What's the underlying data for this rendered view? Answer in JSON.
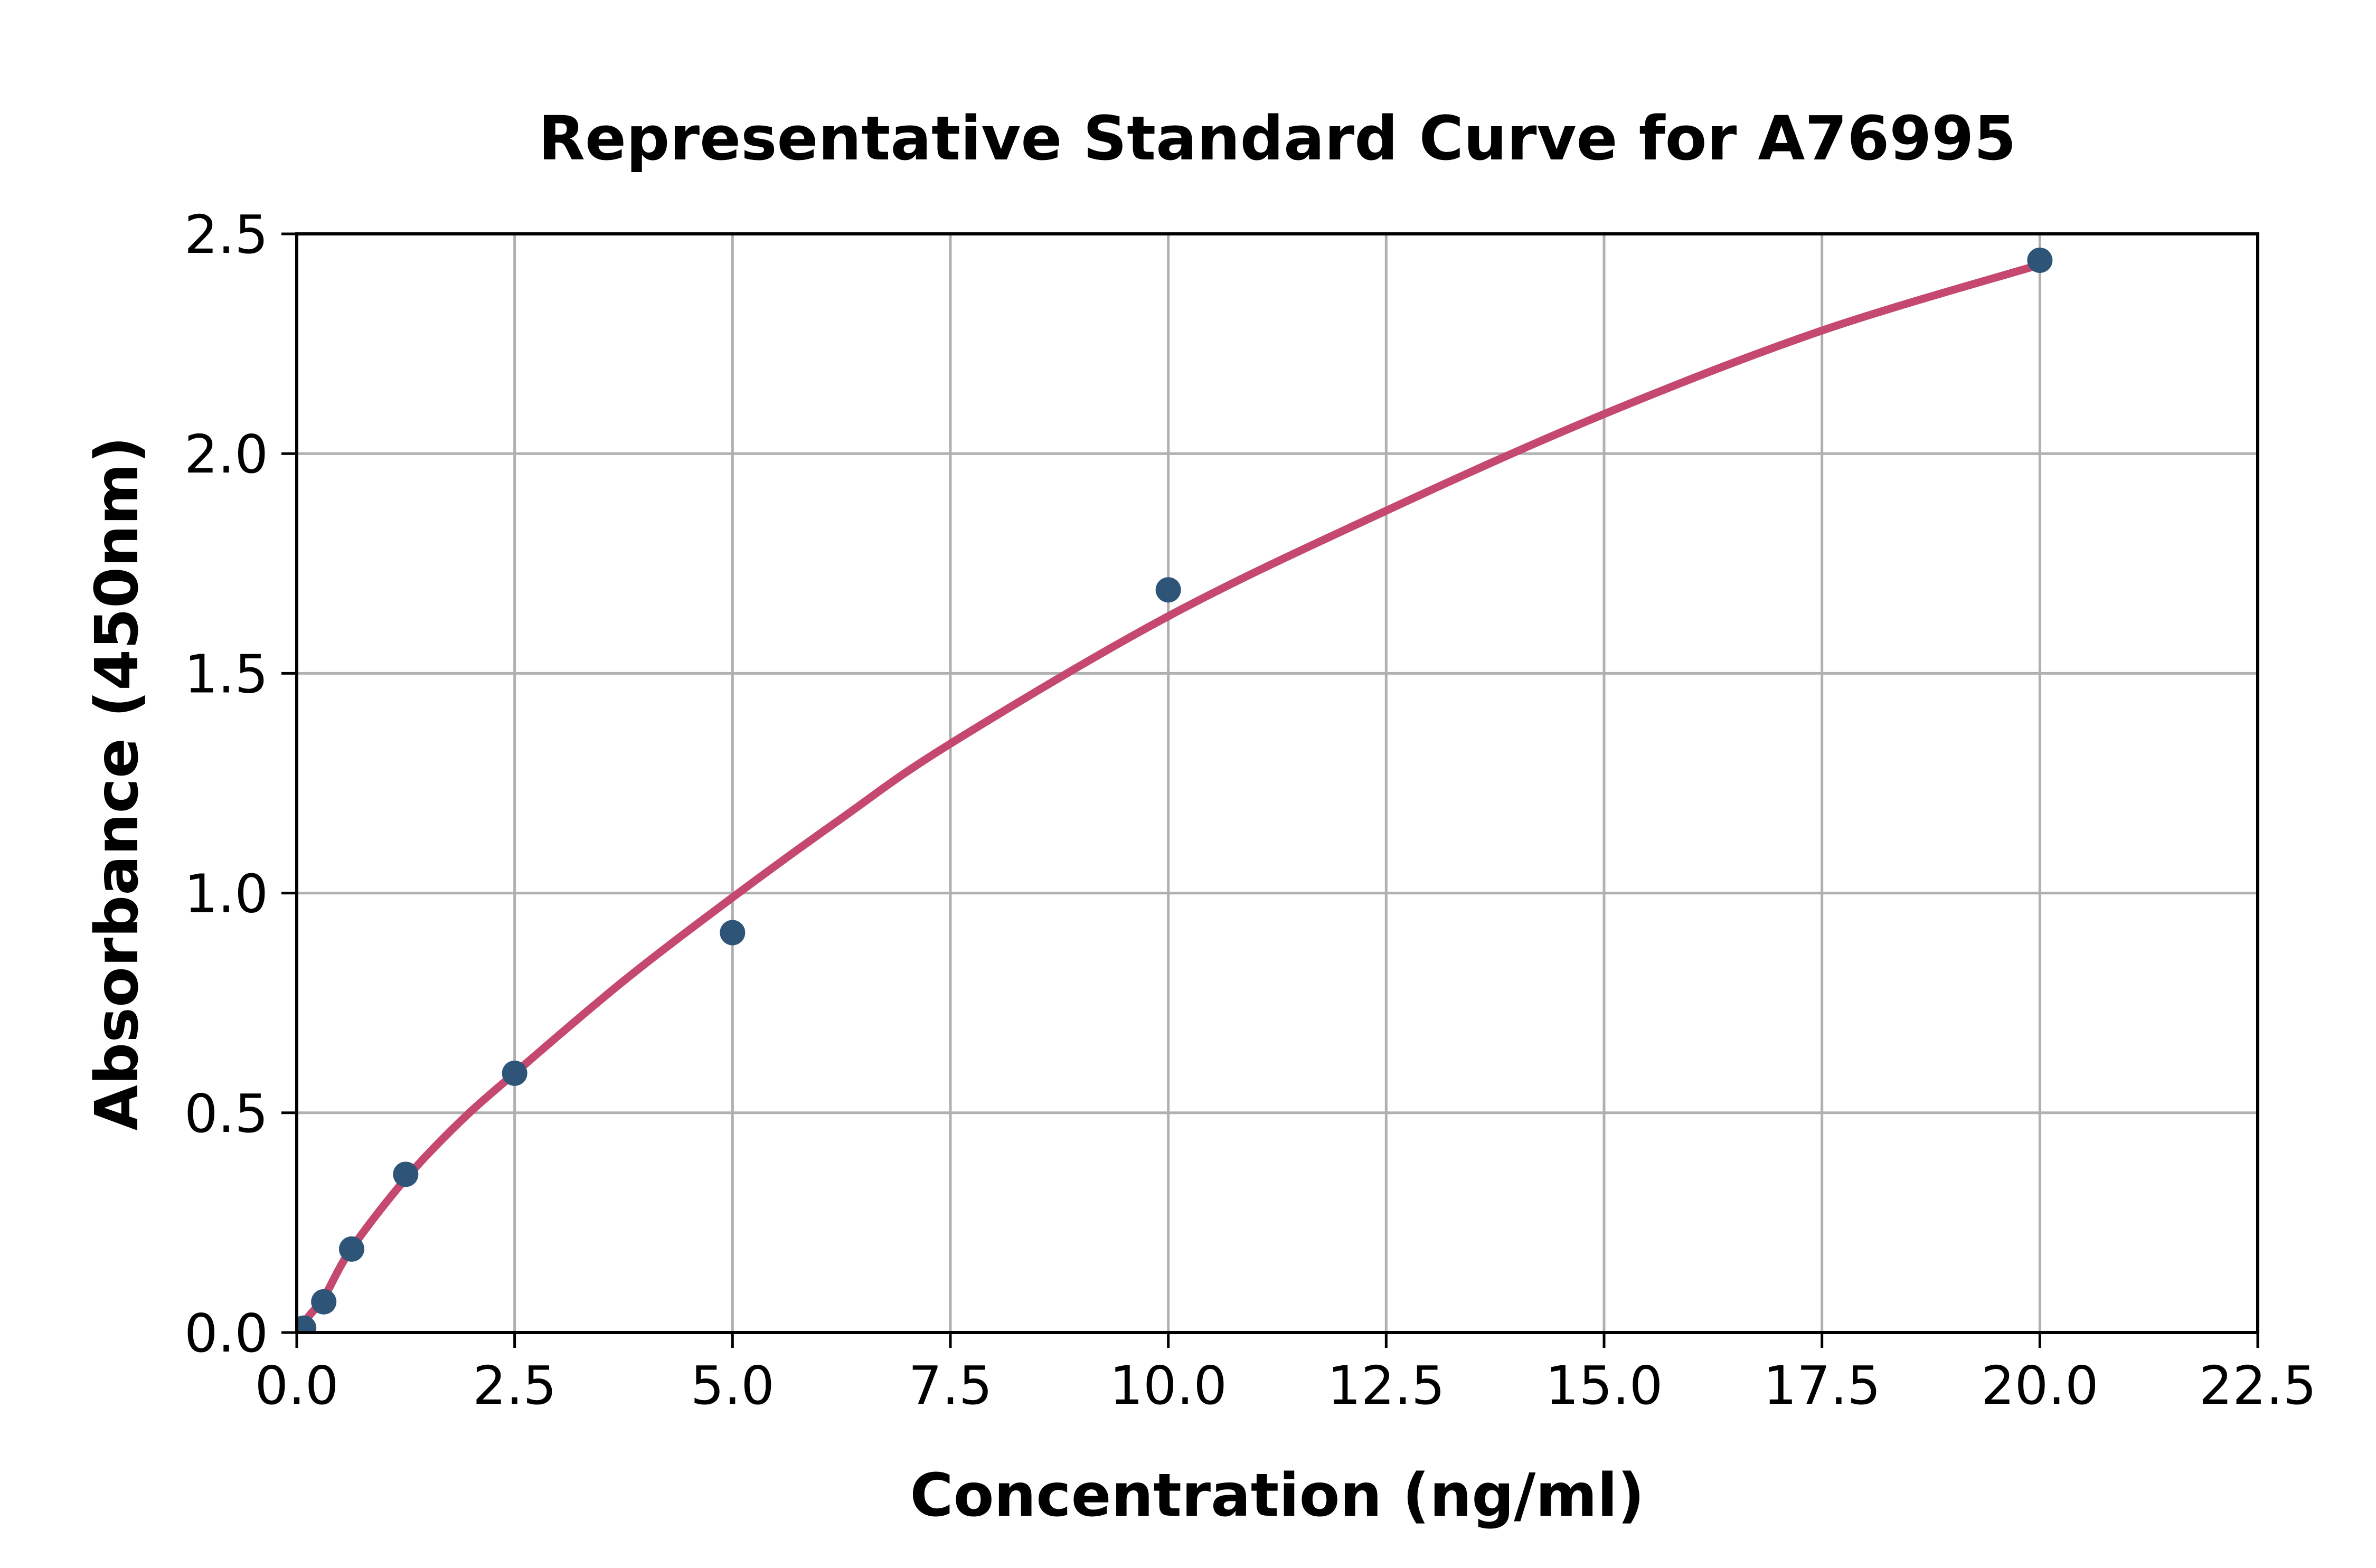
{
  "figure": {
    "background": "#ffffff"
  },
  "chart_data": {
    "type": "scatter",
    "title": "Representative Standard Curve for A76995",
    "xlabel": "Concentration (ng/ml)",
    "ylabel": "Absorbance (450nm)",
    "xlim": [
      0,
      22.5
    ],
    "ylim": [
      0,
      2.5
    ],
    "grid": true,
    "legend": false,
    "x_ticks": [
      {
        "v": 0,
        "label": "0.0"
      },
      {
        "v": 2.5,
        "label": "2.5"
      },
      {
        "v": 5,
        "label": "5.0"
      },
      {
        "v": 7.5,
        "label": "7.5"
      },
      {
        "v": 10,
        "label": "10.0"
      },
      {
        "v": 12.5,
        "label": "12.5"
      },
      {
        "v": 15,
        "label": "15.0"
      },
      {
        "v": 17.5,
        "label": "17.5"
      },
      {
        "v": 20,
        "label": "20.0"
      },
      {
        "v": 22.5,
        "label": "22.5"
      }
    ],
    "y_ticks": [
      {
        "v": 0,
        "label": "0.0"
      },
      {
        "v": 0.5,
        "label": "0.5"
      },
      {
        "v": 1,
        "label": "1.0"
      },
      {
        "v": 1.5,
        "label": "1.5"
      },
      {
        "v": 2,
        "label": "2.0"
      },
      {
        "v": 2.5,
        "label": "2.5"
      }
    ],
    "points": [
      {
        "x": 0.08,
        "y": 0.01
      },
      {
        "x": 0.31,
        "y": 0.07
      },
      {
        "x": 0.63,
        "y": 0.19
      },
      {
        "x": 1.25,
        "y": 0.36
      },
      {
        "x": 2.5,
        "y": 0.59
      },
      {
        "x": 5.0,
        "y": 0.91
      },
      {
        "x": 10.0,
        "y": 1.69
      },
      {
        "x": 20.0,
        "y": 2.44
      }
    ],
    "fit_curve": [
      {
        "x": 0,
        "y": 0
      },
      {
        "x": 0.15,
        "y": 0.04
      },
      {
        "x": 0.313,
        "y": 0.08
      },
      {
        "x": 0.625,
        "y": 0.19
      },
      {
        "x": 1.25,
        "y": 0.35
      },
      {
        "x": 1.875,
        "y": 0.48
      },
      {
        "x": 2.5,
        "y": 0.59
      },
      {
        "x": 3.75,
        "y": 0.8
      },
      {
        "x": 5,
        "y": 0.99
      },
      {
        "x": 6.25,
        "y": 1.17
      },
      {
        "x": 7.5,
        "y": 1.34
      },
      {
        "x": 10,
        "y": 1.63
      },
      {
        "x": 12.5,
        "y": 1.87
      },
      {
        "x": 15,
        "y": 2.09
      },
      {
        "x": 17.5,
        "y": 2.28
      },
      {
        "x": 20,
        "y": 2.43
      }
    ],
    "colors": {
      "point": "#2e5477",
      "curve": "#c5496f",
      "grid": "#b0b0b0",
      "axis": "#000000",
      "text": "#000000"
    }
  }
}
